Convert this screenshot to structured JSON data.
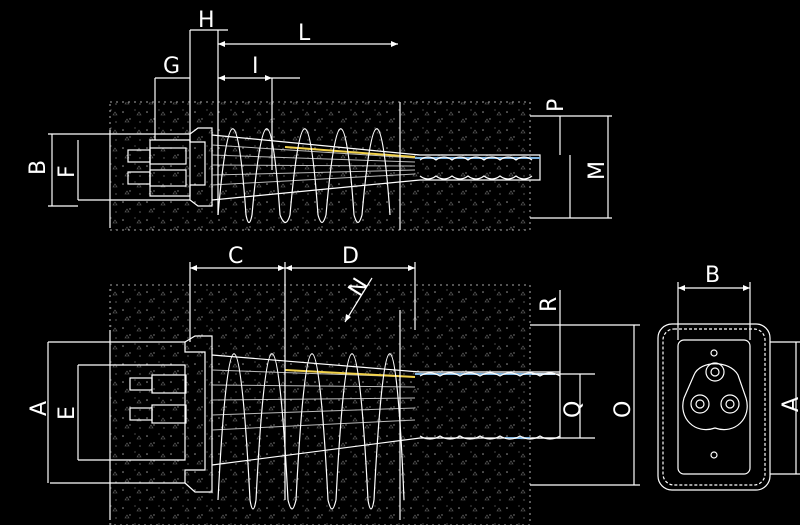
{
  "labels": {
    "top": {
      "H": "H",
      "L": "L",
      "G": "G",
      "I": "I",
      "P": "P",
      "B": "B",
      "F": "F",
      "M": "M"
    },
    "bottom": {
      "C": "C",
      "D": "D",
      "N": "N",
      "R": "R",
      "A": "A",
      "E": "E",
      "Q": "Q",
      "O": "O"
    },
    "end_view": {
      "B": "B",
      "A": "A"
    }
  },
  "colors": {
    "background": "#000000",
    "line": "#ffffff",
    "yellow_strand": "#f2d24a",
    "blue_strand": "#7fb4e0",
    "concrete": "#3a3a3a"
  }
}
